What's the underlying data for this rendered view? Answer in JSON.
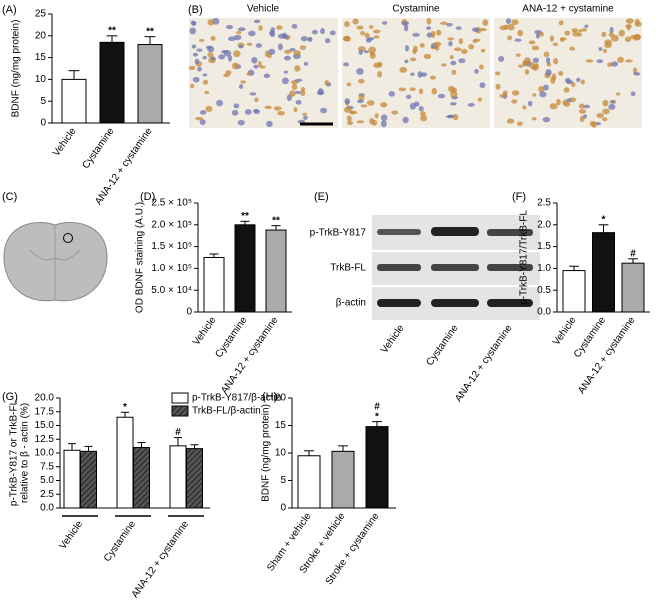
{
  "chart_data": [
    {
      "type": "bar",
      "label": "(A)",
      "ylabel": [
        "BDNF (ng/mg protein)"
      ],
      "categories": [
        "Vehicle",
        "Cystamine",
        "ANA-12 + cystamine"
      ],
      "values": [
        10,
        18.5,
        18
      ],
      "errors": [
        2,
        1.5,
        1.8
      ],
      "colors": [
        "#ffffff",
        "#111111",
        "#aaaaaa"
      ],
      "annotations": [
        null,
        [
          "**"
        ],
        [
          "**"
        ]
      ],
      "ylim": [
        0,
        25
      ],
      "yticks": [
        0,
        5,
        10,
        15,
        20,
        25
      ]
    },
    {
      "type": "bar",
      "label": "(D)",
      "ylabel": [
        "OD BDNF staining (A.U.)"
      ],
      "categories": [
        "Vehicle",
        "Cystamine",
        "ANA-12 + cystamine"
      ],
      "values": [
        125000,
        200000,
        188000
      ],
      "errors": [
        8000,
        8000,
        10000
      ],
      "colors": [
        "#ffffff",
        "#111111",
        "#aaaaaa"
      ],
      "annotations": [
        null,
        [
          "**"
        ],
        [
          "**"
        ]
      ],
      "ylim": [
        0,
        250000
      ],
      "yticks": [
        0,
        {
          "value": 50000,
          "label": "5.0 × 10⁴"
        },
        {
          "value": 100000,
          "label": "1.0 × 10⁵"
        },
        {
          "value": 150000,
          "label": "1.5 × 10⁵"
        },
        {
          "value": 200000,
          "label": "2.0 × 10⁵"
        },
        {
          "value": 250000,
          "label": "2.5 × 10⁵"
        }
      ]
    },
    {
      "type": "bar",
      "label": "(F)",
      "ylabel": [
        "p-TrkB-Y817/TrkB-FL"
      ],
      "categories": [
        "Vehicle",
        "Cystamine",
        "ANA-12 + cystamine"
      ],
      "values": [
        0.95,
        1.82,
        1.12
      ],
      "errors": [
        0.1,
        0.18,
        0.1
      ],
      "colors": [
        "#ffffff",
        "#111111",
        "#aaaaaa"
      ],
      "annotations": [
        null,
        [
          "*"
        ],
        [
          "#"
        ]
      ],
      "ylim": [
        0,
        2.5
      ],
      "yticks": [
        {
          "value": 0,
          "label": "0.0"
        },
        0.5,
        {
          "value": 1,
          "label": "1.0"
        },
        1.5,
        {
          "value": 2,
          "label": "2.0"
        },
        2.5
      ]
    },
    {
      "type": "grouped_bar",
      "label": "(G)",
      "ylabel": [
        "p-TrkB-Y817 or TrkB-FL",
        "relative to β - actin (%)"
      ],
      "categories": [
        "Vehicle",
        "Cystamine",
        "ANA-12 + cystamine"
      ],
      "series": [
        {
          "name": "p-TrkB-Y817/β-actin",
          "color": "#ffffff",
          "hatch": false,
          "values": [
            10.5,
            16.5,
            11.3
          ],
          "errors": [
            1.2,
            0.9,
            1.5
          ],
          "annotations": [
            null,
            [
              "*"
            ],
            [
              "#"
            ]
          ]
        },
        {
          "name": "TrkB-FL/β-actin",
          "color": "#555555",
          "hatch": true,
          "values": [
            10.3,
            11,
            10.8
          ],
          "errors": [
            0.9,
            0.9,
            0.7
          ],
          "annotations": [
            null,
            null,
            null
          ]
        }
      ],
      "legend": "top-right",
      "ylim": [
        0,
        20
      ],
      "yticks": [
        {
          "value": 0,
          "label": "0.0"
        },
        2.5,
        {
          "value": 5,
          "label": "5.0"
        },
        7.5,
        {
          "value": 10,
          "label": "10.0"
        },
        12.5,
        {
          "value": 15,
          "label": "15.0"
        },
        17.5,
        {
          "value": 20,
          "label": "20.0"
        }
      ]
    },
    {
      "type": "bar",
      "label": "(H)",
      "ylabel": [
        "BDNF (ng/mg protein)"
      ],
      "categories": [
        "Sham + vehicle",
        "Stroke + vehicle",
        "Stroke + cystamine"
      ],
      "values": [
        9.5,
        10.3,
        14.8
      ],
      "errors": [
        0.9,
        1.0,
        0.9
      ],
      "colors": [
        "#ffffff",
        "#aaaaaa",
        "#111111"
      ],
      "annotations": [
        null,
        null,
        [
          "*",
          "#"
        ]
      ],
      "ylim": [
        0,
        20
      ],
      "yticks": [
        0,
        5,
        10,
        15,
        20
      ]
    }
  ],
  "micrographs": {
    "label": "(B)",
    "titles": [
      "Vehicle",
      "Cystamine",
      "ANA-12 + cystamine"
    ]
  },
  "brain": {
    "label": "(C)"
  },
  "blot": {
    "label": "(E)",
    "rows": [
      "p-TrkB-Y817",
      "TrkB-FL",
      "β-actin"
    ],
    "lanes": [
      "Vehicle",
      "Cystamine",
      "ANA-12 + cystamine"
    ]
  }
}
